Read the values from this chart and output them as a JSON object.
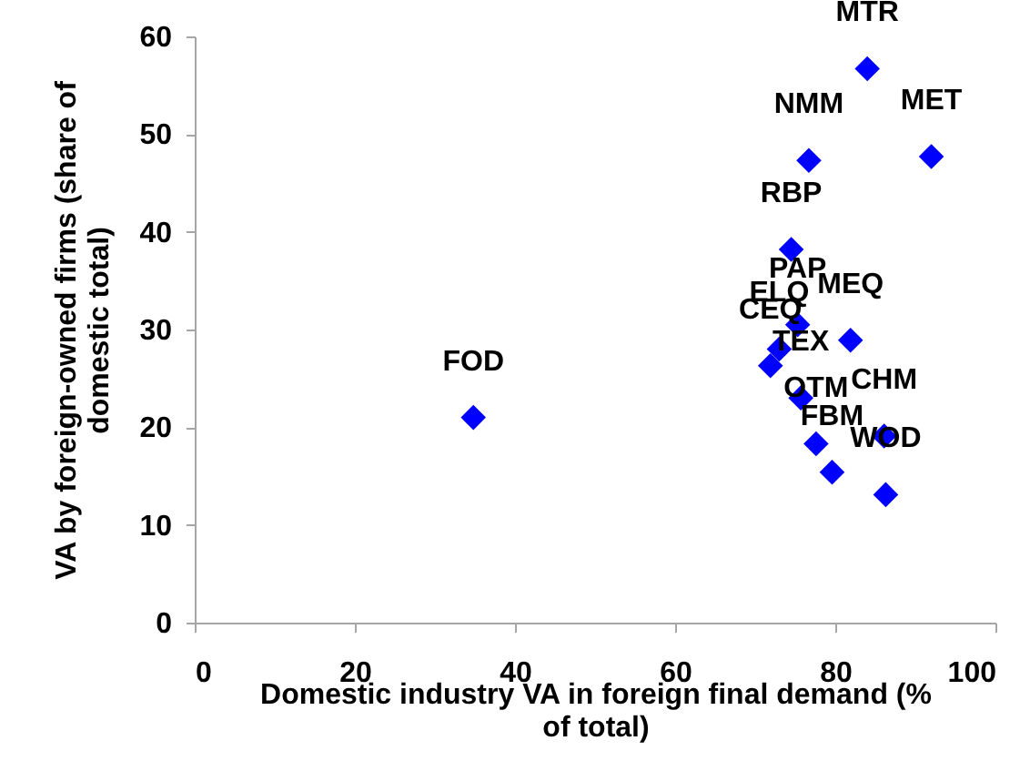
{
  "chart_data": {
    "type": "scatter",
    "xlabel": "Domestic industry VA in foreign final demand (% of total)",
    "ylabel": "VA by foreign-owned  firms (share of domestic total)",
    "x": [
      34.8,
      84.0,
      76.7,
      92.0,
      74.5,
      75.3,
      73.0,
      81.9,
      71.9,
      75.7,
      86.1,
      77.6,
      79.6,
      86.3
    ],
    "series": [
      {
        "color": "#0000ff",
        "values": [
          21.0,
          56.7,
          47.3,
          47.7,
          38.2,
          30.5,
          28.0,
          28.9,
          26.3,
          23.0,
          19.1,
          18.3,
          15.4,
          13.1
        ]
      }
    ],
    "annotations": [
      {
        "text": "FOD",
        "x": 34.8,
        "y": 21.0
      },
      {
        "text": "MTR",
        "x": 84.0,
        "y": 56.7
      },
      {
        "text": "NMM",
        "x": 76.7,
        "y": 47.3
      },
      {
        "text": "MET",
        "x": 92.0,
        "y": 47.7
      },
      {
        "text": "RBP",
        "x": 74.5,
        "y": 38.2
      },
      {
        "text": "PAP",
        "x": 75.3,
        "y": 30.5
      },
      {
        "text": "ELQ",
        "x": 73.0,
        "y": 28.0
      },
      {
        "text": "MEQ",
        "x": 81.9,
        "y": 28.9
      },
      {
        "text": "CEQ",
        "x": 71.9,
        "y": 26.3
      },
      {
        "text": "TEX",
        "x": 75.7,
        "y": 23.0
      },
      {
        "text": "CHM",
        "x": 86.1,
        "y": 19.1
      },
      {
        "text": "OTM",
        "x": 77.6,
        "y": 18.3
      },
      {
        "text": "FBM",
        "x": 79.6,
        "y": 15.4
      },
      {
        "text": "WOD",
        "x": 86.3,
        "y": 13.1
      }
    ],
    "xlim": [
      0,
      100
    ],
    "xticks": [
      0,
      20,
      40,
      60,
      80,
      100
    ],
    "ylim": [
      0,
      60
    ],
    "yticks": [
      0,
      10,
      20,
      30,
      40,
      50,
      60
    ],
    "marker": "diamond",
    "grid": false,
    "legend": false
  }
}
